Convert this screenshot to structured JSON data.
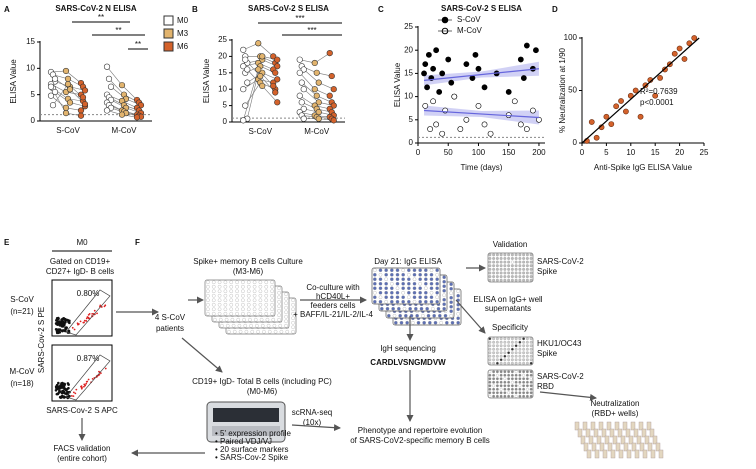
{
  "panel_labels": [
    "A",
    "B",
    "C",
    "D",
    "E",
    "F"
  ],
  "chart_data": [
    {
      "type": "dotplot",
      "title": "SARS-CoV-2 N ELISA",
      "y_label": "ELISA Value",
      "categories": [
        "S-CoV",
        "M-CoV"
      ],
      "ylim": [
        0,
        15
      ],
      "yticks": [
        0,
        5,
        10,
        15
      ],
      "cutoff": 1.2,
      "legend": "right",
      "annotations": [
        "**",
        "**",
        "**"
      ],
      "series": [
        {
          "name": "M0",
          "color": "#ffffff",
          "values": [
            [
              9.3,
              8.8,
              7.5,
              7.0,
              6.2,
              5.5,
              4.8,
              3.0,
              8.0,
              6.5
            ],
            [
              10.3,
              8.0,
              6.5,
              5.0,
              4.5,
              4.0,
              3.5,
              3.0,
              2.5,
              2.0
            ]
          ]
        },
        {
          "name": "M3",
          "color": "#e2b46e",
          "values": [
            [
              9.5,
              8.0,
              6.5,
              5.5,
              4.2,
              3.5,
              2.5,
              7.0,
              6.0,
              1.5
            ],
            [
              6.8,
              5.0,
              4.2,
              3.8,
              3.0,
              2.5,
              2.0,
              1.8,
              1.5,
              1.2
            ]
          ]
        },
        {
          "name": "M6",
          "color": "#d4622b",
          "values": [
            [
              7.2,
              6.5,
              5.8,
              5.0,
              3.8,
              2.8,
              2.0,
              4.5,
              3.2,
              1.0
            ],
            [
              4.0,
              3.5,
              3.0,
              2.5,
              2.0,
              1.5,
              1.2,
              1.0,
              0.8,
              0.7
            ]
          ]
        }
      ]
    },
    {
      "type": "dotplot",
      "title": "SARS-CoV-2 S ELISA",
      "y_label": "ELISA Value",
      "categories": [
        "S-CoV",
        "M-CoV"
      ],
      "ylim": [
        0,
        25
      ],
      "yticks": [
        0,
        5,
        10,
        15,
        20,
        25
      ],
      "cutoff": 1.2,
      "annotations": [
        "***",
        "***"
      ],
      "series": [
        {
          "name": "M0",
          "color": "#ffffff",
          "values": [
            [
              22,
              20,
              18,
              17,
              15,
              12,
              10,
              5,
              1,
              0.5,
              19,
              16
            ],
            [
              19,
              17,
              16,
              15,
              12,
              10,
              8,
              6,
              4,
              3,
              2,
              1
            ]
          ]
        },
        {
          "name": "M3",
          "color": "#e2b46e",
          "values": [
            [
              24,
              20,
              19,
              18,
              17,
              15,
              13,
              12,
              20,
              16,
              14,
              11
            ],
            [
              18,
              15,
              12,
              10,
              8,
              6,
              5,
              4,
              3,
              2,
              1.5,
              1
            ]
          ]
        },
        {
          "name": "M6",
          "color": "#d4622b",
          "values": [
            [
              20,
              18,
              17,
              16,
              15,
              13,
              12,
              10,
              19,
              11,
              9,
              6
            ],
            [
              21,
              14,
              10,
              8,
              6,
              5,
              4,
              3,
              2,
              1.5,
              1,
              0.5
            ]
          ]
        }
      ]
    },
    {
      "type": "scatter",
      "title": "SARS-CoV-2 S ELISA",
      "y_label": "ELISA Value",
      "x_label": "Time (days)",
      "xlim": [
        0,
        210
      ],
      "xticks": [
        0,
        50,
        100,
        150,
        200
      ],
      "ylim": [
        0,
        25
      ],
      "yticks": [
        0,
        5,
        10,
        15,
        20,
        25
      ],
      "cutoff": 1.2,
      "legend": "top-left",
      "series": [
        {
          "name": "S-CoV",
          "color": "#000000",
          "filled": true,
          "x": [
            10,
            12,
            15,
            18,
            22,
            25,
            30,
            35,
            40,
            50,
            55,
            60,
            80,
            90,
            95,
            100,
            110,
            130,
            150,
            170,
            175,
            180,
            190,
            195
          ],
          "values": [
            15,
            17,
            12,
            19,
            14,
            16,
            20,
            11,
            15,
            18,
            13,
            10,
            17,
            14,
            19,
            16,
            12,
            15,
            11,
            18,
            14,
            21,
            16,
            20
          ],
          "trend": {
            "x": [
              10,
              200
            ],
            "y": [
              13.5,
              16
            ],
            "color": "#6666dd"
          }
        },
        {
          "name": "M-CoV",
          "color": "#000000",
          "filled": false,
          "x": [
            12,
            20,
            25,
            30,
            40,
            45,
            60,
            70,
            80,
            100,
            110,
            120,
            150,
            160,
            170,
            180,
            190,
            200
          ],
          "values": [
            8,
            3,
            9,
            4,
            2,
            7,
            10,
            3,
            5,
            8,
            4,
            2,
            6,
            9,
            4,
            3,
            7,
            5
          ],
          "trend": {
            "x": [
              10,
              200
            ],
            "y": [
              7,
              5.5
            ],
            "color": "#6666dd"
          }
        }
      ]
    },
    {
      "type": "scatter",
      "y_label": "% Neutralization at 1/90",
      "x_label": "Anti-Spike IgG ELISA Value",
      "xlim": [
        0,
        25
      ],
      "xticks": [
        0,
        5,
        10,
        15,
        20,
        25
      ],
      "ylim": [
        0,
        100
      ],
      "yticks": [
        0,
        50,
        100
      ],
      "annotations": [
        "R²=0.7639",
        "p<0.0001"
      ],
      "series": [
        {
          "color": "#d4622b",
          "filled": true,
          "x": [
            1,
            2,
            3,
            4,
            5,
            6,
            7,
            8,
            9,
            10,
            11,
            12,
            13,
            14,
            15,
            16,
            17,
            18,
            19,
            20,
            21,
            22,
            23
          ],
          "values": [
            2,
            20,
            5,
            15,
            25,
            18,
            35,
            40,
            30,
            45,
            50,
            25,
            55,
            60,
            45,
            62,
            70,
            75,
            85,
            90,
            80,
            95,
            100
          ],
          "trend": {
            "x": [
              0,
              24
            ],
            "y": [
              0,
              100
            ],
            "color": "#000000"
          }
        }
      ]
    }
  ],
  "panel_e": {
    "timepoint": "M0",
    "gate_1": "Gated on CD19+",
    "gate_2": "CD27+ IgD- B cells",
    "group_1": "S-CoV",
    "n_1": "(n=21)",
    "pct_1": "0.80%",
    "group_2": "M-CoV",
    "n_2": "(n=18)",
    "pct_2": "0.87%",
    "y_axis": "SARS-Cov-2 S PE",
    "x_axis": "SARS-Cov-2 S APC",
    "validation_1": "FACS validation",
    "validation_2": "(entire cohort)"
  },
  "panel_f": {
    "culture_1": "Spike+ memory B cells Culture",
    "culture_2": "(M3-M6)",
    "patients_1": "4 S-CoV",
    "patients_2": "patients",
    "coculture": [
      "Co-culture with",
      "hCD40L+",
      "feeders cells",
      "+ BAFF/IL-21/IL-2/IL-4"
    ],
    "day21": "Day 21: IgG ELISA",
    "validation": "Validation",
    "validation_target_1": "SARS-CoV-2",
    "validation_target_2": "Spike",
    "elisa_1": "ELISA on IgG+ well",
    "elisa_2": "supernatants",
    "specificity": "Specificity",
    "spec_1a": "HKU1/OC43",
    "spec_1b": "Spike",
    "spec_2a": "SARS-CoV-2",
    "spec_2b": "RBD",
    "neutralization": "Neutralization",
    "neutralization_sub": "(RBD+ wells)",
    "igh": "IgH sequencing",
    "igh_logo": "CARDLVSNGMDVW",
    "total_1": "CD19+ IgD- Total B cells (including PC)",
    "total_2": "(M0-M6)",
    "scrna_1": "scRNA-seq",
    "scrna_2": "(10x)",
    "bullets": [
      "• 5' expression profile",
      "• Paired VDJ/VJ",
      "• 20 surface markers",
      "• SARS-Cov-2 Spike"
    ],
    "outcome_1": "Phenotype and repertoire evolution",
    "outcome_2": "of SARS-CoV2-specific memory B cells"
  }
}
